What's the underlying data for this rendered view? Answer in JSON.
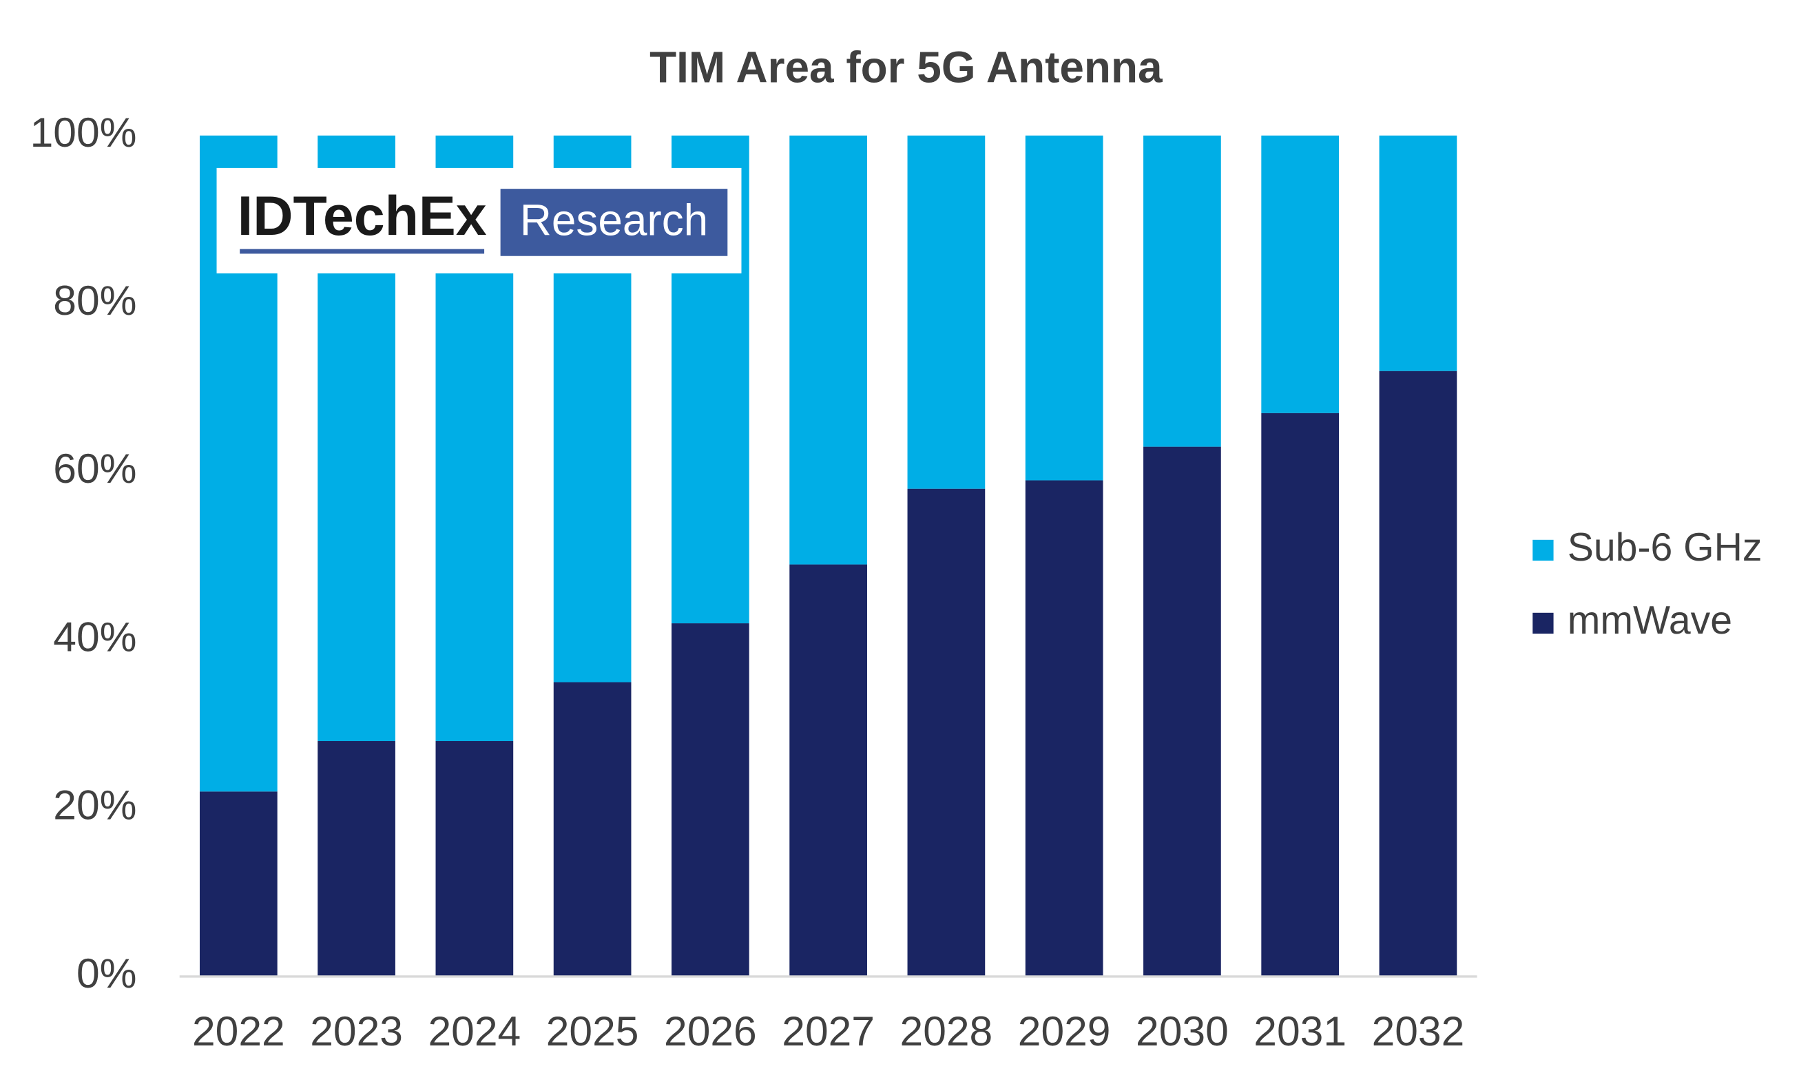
{
  "chart_data": {
    "type": "stacked_bar",
    "title": "TIM Area for 5G Antenna",
    "categories": [
      "2022",
      "2023",
      "2024",
      "2025",
      "2026",
      "2027",
      "2028",
      "2029",
      "2030",
      "2031",
      "2032"
    ],
    "series": [
      {
        "name": "mmWave",
        "color": "#1a2563",
        "values": [
          22,
          28,
          28,
          35,
          42,
          49,
          58,
          59,
          63,
          67,
          72
        ]
      },
      {
        "name": "Sub-6 GHz",
        "color": "#00aee6",
        "values": [
          78,
          72,
          72,
          65,
          58,
          51,
          42,
          41,
          37,
          33,
          28
        ]
      }
    ],
    "ylim": [
      0,
      100
    ],
    "yticks": [
      {
        "value": 0,
        "label": "0%"
      },
      {
        "value": 20,
        "label": "20%"
      },
      {
        "value": 40,
        "label": "40%"
      },
      {
        "value": 60,
        "label": "60%"
      },
      {
        "value": 80,
        "label": "80%"
      },
      {
        "value": 100,
        "label": "100%"
      }
    ],
    "grid": false,
    "legend": "right",
    "watermark": {
      "name": "IDTechEx",
      "tag": "Research"
    }
  }
}
